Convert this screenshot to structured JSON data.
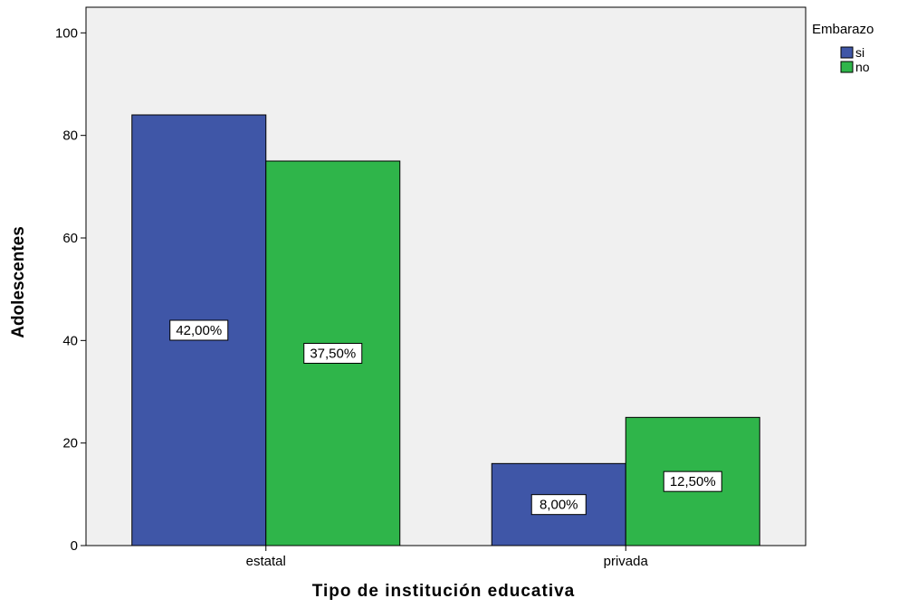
{
  "chart_data": {
    "type": "bar",
    "title": "",
    "xlabel": "Tipo de institución educativa",
    "ylabel": "Adolescentes",
    "categories": [
      "estatal",
      "privada"
    ],
    "series": [
      {
        "name": "si",
        "color": "#3f56a7",
        "values": [
          84,
          16
        ],
        "labels": [
          "42,00%",
          "8,00%"
        ]
      },
      {
        "name": "no",
        "color": "#2fb54a",
        "values": [
          75,
          25
        ],
        "labels": [
          "37,50%",
          "12,50%"
        ]
      }
    ],
    "ylim": [
      0,
      105
    ],
    "yticks": [
      0,
      20,
      40,
      60,
      80,
      100
    ],
    "legend": {
      "title": "Embarazo",
      "placement": "right-top"
    },
    "plot_background": "#f0f0f0",
    "grid": false
  }
}
